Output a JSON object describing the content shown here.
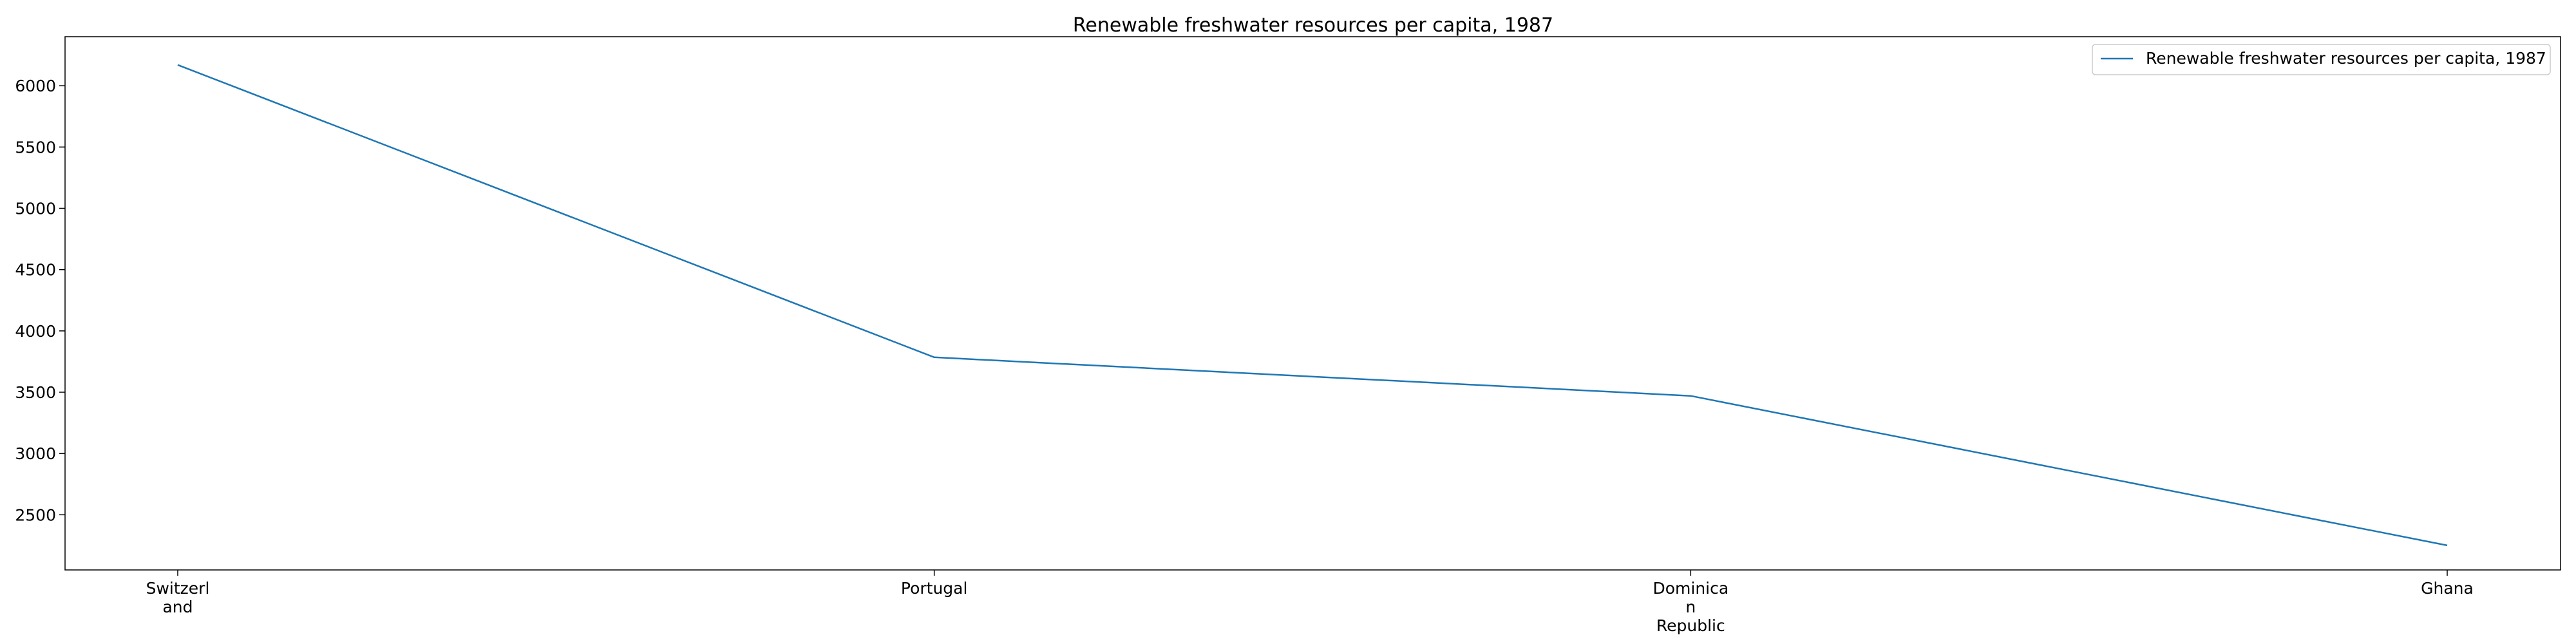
{
  "chart_data": {
    "type": "line",
    "title": "Renewable freshwater resources per capita, 1987",
    "xlabel": "",
    "ylabel": "",
    "categories": [
      "Switzerland",
      "Portugal",
      "Dominican Republic",
      "Ghana"
    ],
    "category_tick_lines": [
      [
        "Switzerl",
        "and"
      ],
      [
        "Portugal"
      ],
      [
        "Dominica",
        "n",
        "Republic"
      ],
      [
        "Ghana"
      ]
    ],
    "series": [
      {
        "name": "Renewable freshwater resources per capita, 1987",
        "values": [
          6170,
          3785,
          3470,
          2250
        ],
        "color": "#1f77b4"
      }
    ],
    "ylim": [
      2050,
      6400
    ],
    "yticks": [
      2500,
      3000,
      3500,
      4000,
      4500,
      5000,
      5500,
      6000
    ],
    "grid": false,
    "legend_position": "top-right"
  }
}
